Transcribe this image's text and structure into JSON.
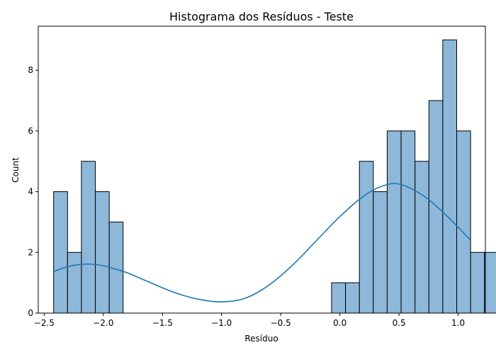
{
  "chart_data": {
    "type": "bar",
    "title": "Histograma dos Resíduos - Teste",
    "xlabel": "Resíduo",
    "ylabel": "Count",
    "xlim": [
      -2.55,
      1.23
    ],
    "ylim": [
      0,
      9.45
    ],
    "xticks": [
      -2.5,
      -2.0,
      -1.5,
      -1.0,
      -0.5,
      0.0,
      0.5,
      1.0
    ],
    "xtick_labels": [
      "−2.5",
      "−2.0",
      "−1.5",
      "−1.0",
      "−0.5",
      "0.0",
      "0.5",
      "1.0"
    ],
    "yticks": [
      0,
      2,
      4,
      6,
      8
    ],
    "ytick_labels": [
      "0",
      "2",
      "4",
      "6",
      "8"
    ],
    "grid": false,
    "bins": {
      "start": -2.42,
      "width": 0.1175,
      "counts": [
        4,
        2,
        5,
        4,
        3,
        0,
        0,
        0,
        0,
        0,
        0,
        0,
        0,
        0,
        0,
        0,
        0,
        0,
        0,
        0,
        1,
        1,
        5,
        4,
        6,
        6,
        5,
        7,
        9,
        6,
        2,
        2
      ]
    },
    "kde": {
      "x": [
        -2.42,
        -2.3,
        -2.2,
        -2.1,
        -2.0,
        -1.9,
        -1.8,
        -1.6,
        -1.4,
        -1.2,
        -1.0,
        -0.8,
        -0.6,
        -0.4,
        -0.2,
        0.0,
        0.2,
        0.35,
        0.5,
        0.7,
        0.9,
        1.1
      ],
      "y": [
        1.37,
        1.53,
        1.6,
        1.61,
        1.56,
        1.45,
        1.33,
        1.0,
        0.68,
        0.46,
        0.37,
        0.49,
        0.92,
        1.58,
        2.38,
        3.18,
        3.85,
        4.17,
        4.25,
        3.88,
        3.22,
        2.42
      ]
    },
    "colors": {
      "bar_fill": "#8db8d9",
      "bar_edge": "#000000",
      "kde_line": "#1f77b4"
    }
  }
}
